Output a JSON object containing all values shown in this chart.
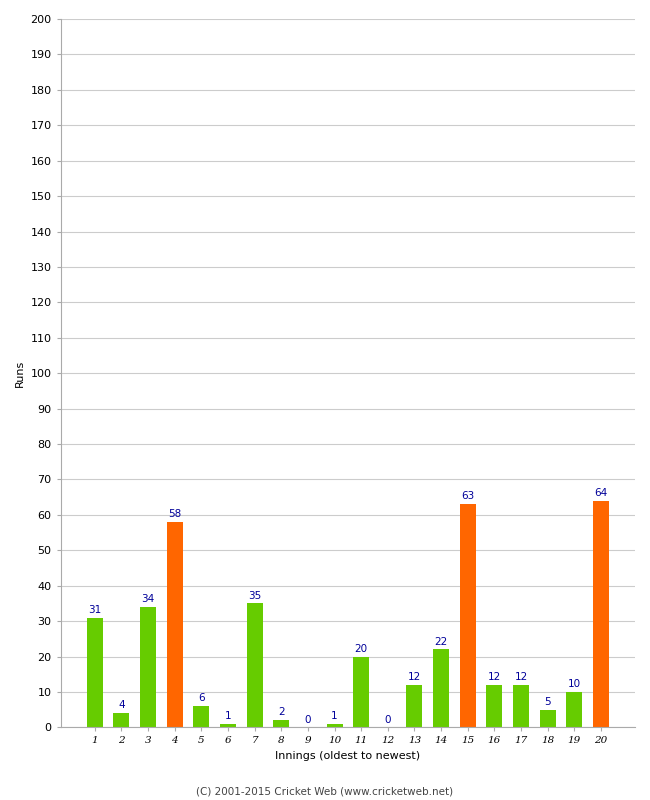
{
  "innings": [
    1,
    2,
    3,
    4,
    5,
    6,
    7,
    8,
    9,
    10,
    11,
    12,
    13,
    14,
    15,
    16,
    17,
    18,
    19,
    20
  ],
  "values": [
    31,
    4,
    34,
    58,
    6,
    1,
    35,
    2,
    0,
    1,
    20,
    0,
    12,
    22,
    63,
    12,
    12,
    5,
    10,
    64
  ],
  "colors": [
    "#66cc00",
    "#66cc00",
    "#66cc00",
    "#ff6600",
    "#66cc00",
    "#66cc00",
    "#66cc00",
    "#66cc00",
    "#66cc00",
    "#66cc00",
    "#66cc00",
    "#66cc00",
    "#66cc00",
    "#66cc00",
    "#ff6600",
    "#66cc00",
    "#66cc00",
    "#66cc00",
    "#66cc00",
    "#ff6600"
  ],
  "xlabel": "Innings (oldest to newest)",
  "ylabel": "Runs",
  "ylim": [
    0,
    200
  ],
  "yticks": [
    0,
    10,
    20,
    30,
    40,
    50,
    60,
    70,
    80,
    90,
    100,
    110,
    120,
    130,
    140,
    150,
    160,
    170,
    180,
    190,
    200
  ],
  "label_color": "#000099",
  "background_color": "#ffffff",
  "footer": "(C) 2001-2015 Cricket Web (www.cricketweb.net)",
  "bar_width": 0.6
}
